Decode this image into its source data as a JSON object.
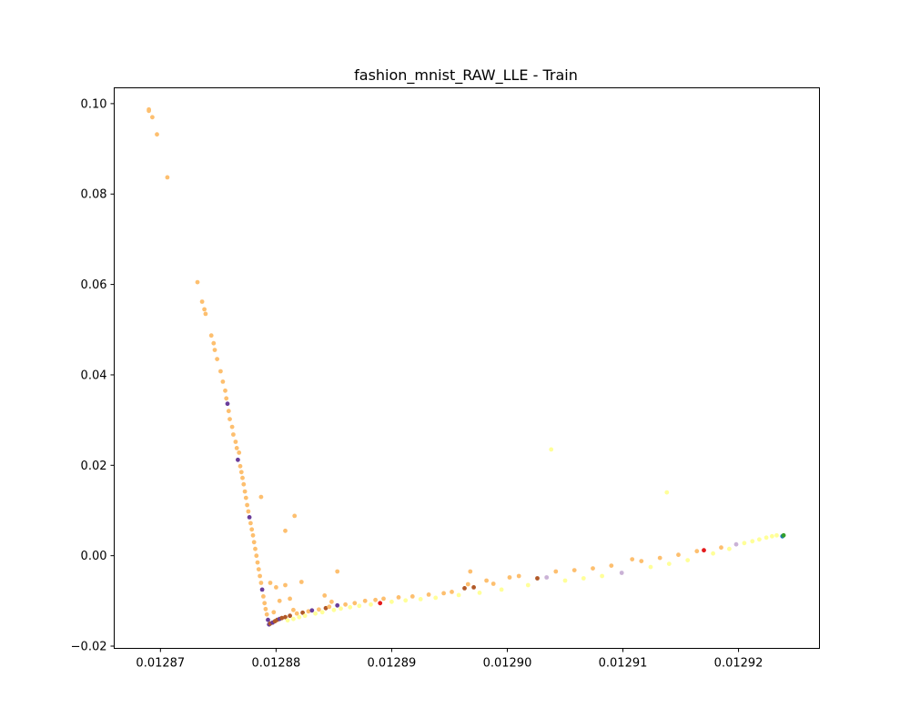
{
  "chart_data": {
    "type": "scatter",
    "title": "fashion_mnist_RAW_LLE - Train",
    "xlabel": "",
    "ylabel": "",
    "xlim": [
      0.012866,
      0.012927
    ],
    "ylim": [
      -0.0205,
      0.1035
    ],
    "x_ticks": [
      {
        "value": 0.01287,
        "label": "0.01287"
      },
      {
        "value": 0.01288,
        "label": "0.01288"
      },
      {
        "value": 0.01289,
        "label": "0.01289"
      },
      {
        "value": 0.0129,
        "label": "0.01290"
      },
      {
        "value": 0.01291,
        "label": "0.01291"
      },
      {
        "value": 0.01292,
        "label": "0.01292"
      }
    ],
    "y_ticks": [
      {
        "value": -0.02,
        "label": "−0.02"
      },
      {
        "value": 0.0,
        "label": "0.00"
      },
      {
        "value": 0.02,
        "label": "0.02"
      },
      {
        "value": 0.04,
        "label": "0.04"
      },
      {
        "value": 0.06,
        "label": "0.06"
      },
      {
        "value": 0.08,
        "label": "0.08"
      },
      {
        "value": 0.1,
        "label": "0.10"
      }
    ],
    "grid": false,
    "legend": "none",
    "colors": {
      "orange": "#fdbf6f",
      "yellow": "#ffff99",
      "purple": "#6a3d9a",
      "brown": "#b15928",
      "red": "#e31a1c",
      "lavender": "#cab2d6",
      "blue": "#1f78b4",
      "green": "#33a02c"
    },
    "points": [
      {
        "x": 0.012869,
        "y": 0.0987,
        "c": "orange"
      },
      {
        "x": 0.012869,
        "y": 0.0984,
        "c": "orange"
      },
      {
        "x": 0.0128693,
        "y": 0.097,
        "c": "orange"
      },
      {
        "x": 0.0128697,
        "y": 0.0932,
        "c": "orange"
      },
      {
        "x": 0.0128706,
        "y": 0.0837,
        "c": "orange"
      },
      {
        "x": 0.0128732,
        "y": 0.0605,
        "c": "orange"
      },
      {
        "x": 0.0128736,
        "y": 0.0562,
        "c": "orange"
      },
      {
        "x": 0.0128738,
        "y": 0.0545,
        "c": "orange"
      },
      {
        "x": 0.0128739,
        "y": 0.0535,
        "c": "orange"
      },
      {
        "x": 0.0128744,
        "y": 0.0487,
        "c": "orange"
      },
      {
        "x": 0.0128746,
        "y": 0.047,
        "c": "orange"
      },
      {
        "x": 0.0128747,
        "y": 0.0455,
        "c": "orange"
      },
      {
        "x": 0.0128749,
        "y": 0.0435,
        "c": "orange"
      },
      {
        "x": 0.0128752,
        "y": 0.0408,
        "c": "orange"
      },
      {
        "x": 0.0128754,
        "y": 0.0385,
        "c": "orange"
      },
      {
        "x": 0.0128756,
        "y": 0.0365,
        "c": "orange"
      },
      {
        "x": 0.0128757,
        "y": 0.0348,
        "c": "orange"
      },
      {
        "x": 0.0128758,
        "y": 0.0336,
        "c": "purple"
      },
      {
        "x": 0.0128759,
        "y": 0.032,
        "c": "orange"
      },
      {
        "x": 0.012876,
        "y": 0.0302,
        "c": "orange"
      },
      {
        "x": 0.0128762,
        "y": 0.0285,
        "c": "orange"
      },
      {
        "x": 0.0128763,
        "y": 0.0268,
        "c": "orange"
      },
      {
        "x": 0.0128765,
        "y": 0.0252,
        "c": "orange"
      },
      {
        "x": 0.0128766,
        "y": 0.0238,
        "c": "orange"
      },
      {
        "x": 0.0128768,
        "y": 0.0228,
        "c": "orange"
      },
      {
        "x": 0.0128767,
        "y": 0.0212,
        "c": "purple"
      },
      {
        "x": 0.0128769,
        "y": 0.0198,
        "c": "orange"
      },
      {
        "x": 0.012877,
        "y": 0.0185,
        "c": "orange"
      },
      {
        "x": 0.0128771,
        "y": 0.0172,
        "c": "orange"
      },
      {
        "x": 0.0128772,
        "y": 0.0158,
        "c": "orange"
      },
      {
        "x": 0.0128773,
        "y": 0.0142,
        "c": "orange"
      },
      {
        "x": 0.0128774,
        "y": 0.0128,
        "c": "orange"
      },
      {
        "x": 0.0128775,
        "y": 0.0112,
        "c": "orange"
      },
      {
        "x": 0.0128776,
        "y": 0.0098,
        "c": "orange"
      },
      {
        "x": 0.0128777,
        "y": 0.0085,
        "c": "purple"
      },
      {
        "x": 0.0128778,
        "y": 0.0072,
        "c": "orange"
      },
      {
        "x": 0.0128779,
        "y": 0.0058,
        "c": "orange"
      },
      {
        "x": 0.012878,
        "y": 0.0045,
        "c": "orange"
      },
      {
        "x": 0.0128781,
        "y": 0.003,
        "c": "orange"
      },
      {
        "x": 0.0128782,
        "y": 0.0015,
        "c": "orange"
      },
      {
        "x": 0.0128783,
        "y": 0.0,
        "c": "orange"
      },
      {
        "x": 0.0128784,
        "y": -0.0015,
        "c": "orange"
      },
      {
        "x": 0.0128785,
        "y": -0.003,
        "c": "orange"
      },
      {
        "x": 0.0128786,
        "y": -0.0045,
        "c": "orange"
      },
      {
        "x": 0.0128787,
        "y": -0.006,
        "c": "orange"
      },
      {
        "x": 0.0128788,
        "y": -0.0075,
        "c": "purple"
      },
      {
        "x": 0.0128789,
        "y": -0.009,
        "c": "orange"
      },
      {
        "x": 0.012879,
        "y": -0.0105,
        "c": "orange"
      },
      {
        "x": 0.0128791,
        "y": -0.0118,
        "c": "orange"
      },
      {
        "x": 0.0128792,
        "y": -0.013,
        "c": "orange"
      },
      {
        "x": 0.0128793,
        "y": -0.0142,
        "c": "purple"
      },
      {
        "x": 0.0128794,
        "y": -0.0152,
        "c": "purple"
      },
      {
        "x": 0.0128795,
        "y": -0.015,
        "c": "brown"
      },
      {
        "x": 0.0128797,
        "y": -0.0148,
        "c": "purple"
      },
      {
        "x": 0.0128799,
        "y": -0.0145,
        "c": "brown"
      },
      {
        "x": 0.0128801,
        "y": -0.0142,
        "c": "brown"
      },
      {
        "x": 0.0128803,
        "y": -0.014,
        "c": "purple"
      },
      {
        "x": 0.0128805,
        "y": -0.0138,
        "c": "brown"
      },
      {
        "x": 0.0128808,
        "y": -0.0136,
        "c": "brown"
      },
      {
        "x": 0.012881,
        "y": -0.0143,
        "c": "yellow"
      },
      {
        "x": 0.0128812,
        "y": -0.0133,
        "c": "brown"
      },
      {
        "x": 0.0128815,
        "y": -0.014,
        "c": "yellow"
      },
      {
        "x": 0.0128818,
        "y": -0.0128,
        "c": "orange"
      },
      {
        "x": 0.012882,
        "y": -0.0136,
        "c": "yellow"
      },
      {
        "x": 0.0128823,
        "y": -0.0126,
        "c": "brown"
      },
      {
        "x": 0.0128825,
        "y": -0.0133,
        "c": "yellow"
      },
      {
        "x": 0.0128828,
        "y": -0.0123,
        "c": "orange"
      },
      {
        "x": 0.0128831,
        "y": -0.0121,
        "c": "purple"
      },
      {
        "x": 0.0128834,
        "y": -0.0128,
        "c": "yellow"
      },
      {
        "x": 0.0128837,
        "y": -0.0119,
        "c": "orange"
      },
      {
        "x": 0.012884,
        "y": -0.0125,
        "c": "yellow"
      },
      {
        "x": 0.0128843,
        "y": -0.0116,
        "c": "brown"
      },
      {
        "x": 0.0128846,
        "y": -0.0113,
        "c": "orange"
      },
      {
        "x": 0.012885,
        "y": -0.012,
        "c": "yellow"
      },
      {
        "x": 0.0128853,
        "y": -0.011,
        "c": "purple"
      },
      {
        "x": 0.0128856,
        "y": -0.0117,
        "c": "yellow"
      },
      {
        "x": 0.012886,
        "y": -0.0108,
        "c": "orange"
      },
      {
        "x": 0.0128864,
        "y": -0.0114,
        "c": "yellow"
      },
      {
        "x": 0.0128868,
        "y": -0.0105,
        "c": "orange"
      },
      {
        "x": 0.0128872,
        "y": -0.0111,
        "c": "yellow"
      },
      {
        "x": 0.0128877,
        "y": -0.01,
        "c": "orange"
      },
      {
        "x": 0.0128882,
        "y": -0.0108,
        "c": "yellow"
      },
      {
        "x": 0.0128886,
        "y": -0.0098,
        "c": "orange"
      },
      {
        "x": 0.012889,
        "y": -0.0105,
        "c": "red"
      },
      {
        "x": 0.0128893,
        "y": -0.0095,
        "c": "orange"
      },
      {
        "x": 0.01289,
        "y": -0.0102,
        "c": "yellow"
      },
      {
        "x": 0.0128906,
        "y": -0.0092,
        "c": "orange"
      },
      {
        "x": 0.0128912,
        "y": -0.0099,
        "c": "yellow"
      },
      {
        "x": 0.0128918,
        "y": -0.009,
        "c": "orange"
      },
      {
        "x": 0.0128925,
        "y": -0.0096,
        "c": "yellow"
      },
      {
        "x": 0.0128932,
        "y": -0.0086,
        "c": "orange"
      },
      {
        "x": 0.0128938,
        "y": -0.0093,
        "c": "yellow"
      },
      {
        "x": 0.0128945,
        "y": -0.0083,
        "c": "orange"
      },
      {
        "x": 0.0128952,
        "y": -0.008,
        "c": "orange"
      },
      {
        "x": 0.0128958,
        "y": -0.0087,
        "c": "yellow"
      },
      {
        "x": 0.0128963,
        "y": -0.0072,
        "c": "brown"
      },
      {
        "x": 0.0128966,
        "y": -0.0063,
        "c": "orange"
      },
      {
        "x": 0.0128971,
        "y": -0.007,
        "c": "brown"
      },
      {
        "x": 0.0128976,
        "y": -0.0082,
        "c": "yellow"
      },
      {
        "x": 0.0128982,
        "y": -0.0055,
        "c": "orange"
      },
      {
        "x": 0.0128988,
        "y": -0.0062,
        "c": "orange"
      },
      {
        "x": 0.0128995,
        "y": -0.0075,
        "c": "yellow"
      },
      {
        "x": 0.0129002,
        "y": -0.0048,
        "c": "orange"
      },
      {
        "x": 0.012901,
        "y": -0.0045,
        "c": "orange"
      },
      {
        "x": 0.0129018,
        "y": -0.0065,
        "c": "yellow"
      },
      {
        "x": 0.0129026,
        "y": -0.005,
        "c": "brown"
      },
      {
        "x": 0.0129034,
        "y": -0.0048,
        "c": "lavender"
      },
      {
        "x": 0.0129042,
        "y": -0.0035,
        "c": "orange"
      },
      {
        "x": 0.012905,
        "y": -0.0055,
        "c": "yellow"
      },
      {
        "x": 0.0129058,
        "y": -0.0032,
        "c": "orange"
      },
      {
        "x": 0.0129066,
        "y": -0.005,
        "c": "yellow"
      },
      {
        "x": 0.0129074,
        "y": -0.0028,
        "c": "orange"
      },
      {
        "x": 0.0129082,
        "y": -0.0045,
        "c": "yellow"
      },
      {
        "x": 0.012909,
        "y": -0.0022,
        "c": "orange"
      },
      {
        "x": 0.0129099,
        "y": -0.0038,
        "c": "lavender"
      },
      {
        "x": 0.0129108,
        "y": -0.0008,
        "c": "orange"
      },
      {
        "x": 0.0129116,
        "y": -0.0012,
        "c": "orange"
      },
      {
        "x": 0.0129124,
        "y": -0.0025,
        "c": "yellow"
      },
      {
        "x": 0.0129132,
        "y": -0.0005,
        "c": "orange"
      },
      {
        "x": 0.012914,
        "y": -0.0018,
        "c": "yellow"
      },
      {
        "x": 0.0129148,
        "y": 0.0002,
        "c": "orange"
      },
      {
        "x": 0.0129156,
        "y": -0.001,
        "c": "yellow"
      },
      {
        "x": 0.0129164,
        "y": 0.001,
        "c": "orange"
      },
      {
        "x": 0.012917,
        "y": 0.0012,
        "c": "red"
      },
      {
        "x": 0.0129178,
        "y": 0.0005,
        "c": "yellow"
      },
      {
        "x": 0.0129185,
        "y": 0.0018,
        "c": "orange"
      },
      {
        "x": 0.0129192,
        "y": 0.0015,
        "c": "yellow"
      },
      {
        "x": 0.0129198,
        "y": 0.0025,
        "c": "lavender"
      },
      {
        "x": 0.0129205,
        "y": 0.0028,
        "c": "yellow"
      },
      {
        "x": 0.0129212,
        "y": 0.0032,
        "c": "yellow"
      },
      {
        "x": 0.0129218,
        "y": 0.0036,
        "c": "yellow"
      },
      {
        "x": 0.0129224,
        "y": 0.004,
        "c": "yellow"
      },
      {
        "x": 0.0129229,
        "y": 0.0043,
        "c": "yellow"
      },
      {
        "x": 0.0129233,
        "y": 0.0045,
        "c": "yellow"
      },
      {
        "x": 0.0129238,
        "y": 0.0043,
        "c": "blue"
      },
      {
        "x": 0.0129239,
        "y": 0.0045,
        "c": "green"
      },
      {
        "x": 0.0128795,
        "y": -0.006,
        "c": "orange"
      },
      {
        "x": 0.01288,
        "y": -0.007,
        "c": "orange"
      },
      {
        "x": 0.0128808,
        "y": -0.0065,
        "c": "orange"
      },
      {
        "x": 0.0128803,
        "y": -0.01,
        "c": "orange"
      },
      {
        "x": 0.0128812,
        "y": -0.0095,
        "c": "orange"
      },
      {
        "x": 0.0128822,
        "y": -0.0058,
        "c": "orange"
      },
      {
        "x": 0.0128842,
        "y": -0.0088,
        "c": "orange"
      },
      {
        "x": 0.0128848,
        "y": -0.0102,
        "c": "orange"
      },
      {
        "x": 0.0128853,
        "y": -0.0035,
        "c": "orange"
      },
      {
        "x": 0.0128816,
        "y": 0.0088,
        "c": "orange"
      },
      {
        "x": 0.0128787,
        "y": 0.013,
        "c": "orange"
      },
      {
        "x": 0.0128808,
        "y": 0.0055,
        "c": "orange"
      },
      {
        "x": 0.0128798,
        "y": -0.0125,
        "c": "orange"
      },
      {
        "x": 0.0128815,
        "y": -0.012,
        "c": "orange"
      },
      {
        "x": 0.0129038,
        "y": 0.0235,
        "c": "yellow"
      },
      {
        "x": 0.0129138,
        "y": 0.014,
        "c": "yellow"
      },
      {
        "x": 0.0128968,
        "y": -0.0035,
        "c": "orange"
      }
    ]
  }
}
